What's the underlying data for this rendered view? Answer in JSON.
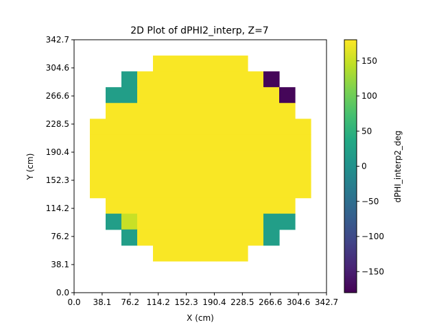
{
  "chart_data": {
    "type": "heatmap",
    "title": "2D Plot of dPHI2_interp, Z=7",
    "xlabel": "X (cm)",
    "ylabel": "Y (cm)",
    "xlim": [
      0.0,
      342.7
    ],
    "ylim": [
      0.0,
      342.7
    ],
    "x_ticks": [
      "0.0",
      "38.1",
      "76.2",
      "114.2",
      "152.3",
      "190.4",
      "228.5",
      "266.6",
      "304.6",
      "342.7"
    ],
    "y_ticks": [
      "0.0",
      "38.1",
      "76.2",
      "114.2",
      "152.3",
      "190.4",
      "228.5",
      "266.6",
      "304.6",
      "342.7"
    ],
    "colorbar": {
      "label": "dPHI_interp2_deg",
      "range": [
        -180,
        180
      ],
      "ticks": [
        "150",
        "100",
        "50",
        "0",
        "−50",
        "−100",
        "−150"
      ],
      "tick_values": [
        150,
        100,
        50,
        0,
        -50,
        -100,
        -150
      ],
      "colormap": "viridis"
    },
    "grid_size": [
      16,
      16
    ],
    "cell_size_cm": 21.42,
    "cell_value_note": "rows listed from top (high Y) to bottom (low Y); null = no data",
    "rows": [
      [
        null,
        null,
        null,
        null,
        null,
        null,
        null,
        null,
        null,
        null,
        null,
        null,
        null,
        null,
        null,
        null
      ],
      [
        null,
        null,
        null,
        null,
        null,
        178,
        178,
        178,
        178,
        178,
        178,
        null,
        null,
        null,
        null,
        null
      ],
      [
        null,
        null,
        null,
        20,
        178,
        178,
        178,
        178,
        178,
        178,
        178,
        178,
        -175,
        null,
        null,
        null
      ],
      [
        null,
        null,
        20,
        20,
        178,
        178,
        178,
        178,
        178,
        178,
        178,
        178,
        178,
        -175,
        null,
        null
      ],
      [
        null,
        null,
        178,
        178,
        178,
        178,
        178,
        178,
        178,
        178,
        178,
        178,
        178,
        178,
        null,
        null
      ],
      [
        null,
        178,
        178,
        178,
        178,
        178,
        178,
        178,
        178,
        178,
        178,
        178,
        178,
        178,
        178,
        null
      ],
      [
        null,
        178,
        178,
        178,
        178,
        178,
        178,
        178,
        178,
        178,
        178,
        178,
        178,
        178,
        178,
        null
      ],
      [
        null,
        178,
        178,
        178,
        178,
        178,
        178,
        178,
        178,
        178,
        178,
        178,
        178,
        178,
        178,
        null
      ],
      [
        null,
        178,
        178,
        178,
        178,
        178,
        178,
        178,
        178,
        178,
        178,
        178,
        178,
        178,
        178,
        null
      ],
      [
        null,
        178,
        178,
        178,
        178,
        178,
        178,
        178,
        178,
        178,
        178,
        178,
        178,
        178,
        178,
        null
      ],
      [
        null,
        null,
        178,
        178,
        178,
        178,
        178,
        178,
        178,
        178,
        178,
        178,
        178,
        178,
        null,
        null
      ],
      [
        null,
        null,
        20,
        150,
        178,
        178,
        178,
        178,
        178,
        178,
        178,
        178,
        20,
        20,
        null,
        null
      ],
      [
        null,
        null,
        null,
        20,
        178,
        178,
        178,
        178,
        178,
        178,
        178,
        178,
        20,
        null,
        null,
        null
      ],
      [
        null,
        null,
        null,
        null,
        null,
        178,
        178,
        178,
        178,
        178,
        178,
        null,
        null,
        null,
        null,
        null
      ],
      [
        null,
        null,
        null,
        null,
        null,
        null,
        null,
        null,
        null,
        null,
        null,
        null,
        null,
        null,
        null,
        null
      ],
      [
        null,
        null,
        null,
        null,
        null,
        null,
        null,
        null,
        null,
        null,
        null,
        null,
        null,
        null,
        null,
        null
      ]
    ]
  }
}
